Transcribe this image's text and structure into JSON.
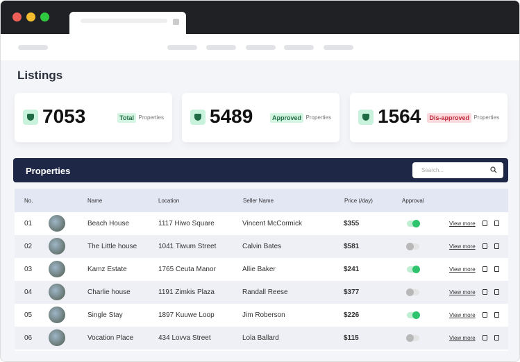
{
  "page": {
    "title": "Listings",
    "stats": [
      {
        "value": 7053,
        "badge": "Total",
        "label": "Properties",
        "badge_style": "green"
      },
      {
        "value": 5489,
        "badge": "Approved",
        "label": "Properties",
        "badge_style": "green"
      },
      {
        "value": 1564,
        "badge": "Dis-approved",
        "label": "Properties",
        "badge_style": "red"
      }
    ],
    "section_title": "Properties",
    "search_placeholder": "Search...",
    "table": {
      "headers": [
        "No.",
        "Name",
        "Location",
        "Seller Name",
        "Price (/day)",
        "Approval"
      ],
      "action_label": "View more",
      "rows": [
        {
          "no": "01",
          "name": "Beach House",
          "location": "1117 Hiwo Square",
          "seller": "Vincent McCormick",
          "price": "$355",
          "approved": true
        },
        {
          "no": "02",
          "name": "The Little house",
          "location": "1041 Tiwum Street",
          "seller": "Calvin Bates",
          "price": "$581",
          "approved": false
        },
        {
          "no": "03",
          "name": "Kamz Estate",
          "location": "1765 Ceuta Manor",
          "seller": "Allie Baker",
          "price": "$241",
          "approved": true
        },
        {
          "no": "04",
          "name": "Charlie house",
          "location": "1191 Zimkis Plaza",
          "seller": "Randall Reese",
          "price": "$377",
          "approved": false
        },
        {
          "no": "05",
          "name": "Single Stay",
          "location": "1897 Kuuwe Loop",
          "seller": "Jim Roberson",
          "price": "$226",
          "approved": true
        },
        {
          "no": "06",
          "name": "Vocation Place",
          "location": "434 Lovva Street",
          "seller": "Lola Ballard",
          "price": "$115",
          "approved": false
        }
      ]
    }
  }
}
